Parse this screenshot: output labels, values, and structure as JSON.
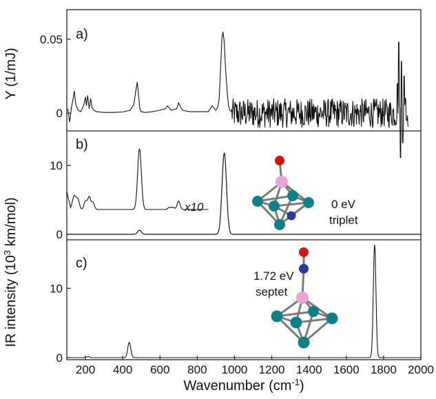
{
  "chart_data": [
    {
      "type": "line",
      "panel_label": "a)",
      "ylabel": "Y (1/mJ)",
      "xlim": [
        100,
        2000
      ],
      "ylim": [
        -0.012,
        0.07
      ],
      "yticks": [
        0,
        0.05
      ],
      "ytick_labels": [
        "0",
        "0.05"
      ],
      "series": [
        {
          "style": "noisy-black",
          "x": [
            105,
            115,
            125,
            133,
            140,
            148,
            160,
            175,
            190,
            200,
            205,
            212,
            220,
            228,
            235,
            245,
            260,
            300,
            350,
            400,
            440,
            460,
            470,
            478,
            485,
            492,
            500,
            520,
            560,
            600,
            630,
            640,
            660,
            690,
            700,
            712,
            720,
            760,
            800,
            860,
            880,
            900,
            910,
            918,
            925,
            932,
            938,
            945,
            952,
            960,
            968,
            975,
            985
          ],
          "y": [
            0.003,
            -0.006,
            0.004,
            0.009,
            0.015,
            0.006,
            0.002,
            0.001,
            0.005,
            0.011,
            0.005,
            0.012,
            0.003,
            0.01,
            0.004,
            0.002,
            0.001,
            0.0005,
            0.0005,
            0.0008,
            0.002,
            0.006,
            0.015,
            0.021,
            0.012,
            0.003,
            0.001,
            0.0005,
            0.001,
            0.002,
            0.003,
            0.005,
            0.002,
            0.003,
            0.007,
            0.004,
            0.002,
            0.001,
            0.001,
            0.001,
            0.005,
            0.002,
            0.004,
            0.01,
            0.03,
            0.05,
            0.055,
            0.048,
            0.03,
            0.015,
            0.005,
            0.002,
            0.001
          ]
        }
      ],
      "noisy_region": {
        "x_start": 985,
        "x_end": 1935,
        "noise_amplitude": 0.01
      },
      "spikes": {
        "x": [
          1875,
          1882,
          1890,
          1895,
          1902,
          1910,
          1918,
          1925
        ],
        "y": [
          0.02,
          0.048,
          -0.03,
          0.035,
          -0.02,
          0.025,
          0.01,
          -0.005
        ]
      }
    },
    {
      "type": "line",
      "panel_label": "b)",
      "xlim": [
        100,
        2000
      ],
      "ylim": [
        -0.8,
        15
      ],
      "yticks": [
        0,
        10
      ],
      "ytick_labels": [
        "0",
        "10"
      ],
      "peaks": {
        "centers": [
          490,
          945
        ],
        "heights": [
          0.6,
          11.8
        ],
        "widths": [
          10,
          12
        ]
      },
      "scaled_trace": {
        "label": "x10",
        "baseline": 3.6,
        "x_end": 860,
        "peaks": {
          "centers": [
            140,
            160,
            200,
            220,
            240,
            490,
            650,
            670,
            700
          ],
          "heights": [
            2.0,
            1.3,
            1.2,
            1.8,
            1.0,
            8.8,
            0.3,
            0.3,
            1.2
          ],
          "widths": [
            10,
            8,
            8,
            8,
            8,
            10,
            8,
            8,
            8
          ]
        },
        "left_edge": {
          "x": [
            100,
            110,
            118
          ],
          "y": [
            6.2,
            5.0,
            4.2
          ]
        }
      },
      "annotations": [
        "0 eV",
        "triplet"
      ],
      "structure": "Co4NO cluster (triplet)"
    },
    {
      "type": "line",
      "panel_label": "c)",
      "xlim": [
        100,
        2000
      ],
      "ylim": [
        -0.3,
        17
      ],
      "yticks": [
        0,
        10
      ],
      "ytick_labels": [
        "0",
        "10"
      ],
      "peaks": {
        "centers": [
          215,
          435,
          1752
        ],
        "heights": [
          0.15,
          2.2,
          16.3
        ],
        "widths": [
          8,
          8,
          7
        ]
      },
      "annotations": [
        "1.72 eV",
        "septet"
      ],
      "structure": "Co4NO cluster (septet)"
    }
  ],
  "x_axis": {
    "label": "Wavenumber (cm",
    "label_sup": "-1",
    "label_end": ")",
    "ticks": [
      200,
      400,
      600,
      800,
      1000,
      1200,
      1400,
      1600,
      1800,
      2000
    ],
    "tick_labels": [
      "200",
      "400",
      "600",
      "800",
      "1000",
      "1200",
      "1400",
      "1600",
      "1800",
      "2000"
    ]
  },
  "shared_ylabel": {
    "pre": "IR intensity (10",
    "sup": "3",
    "post": " km/mol)"
  },
  "colors": {
    "line": "#111111",
    "axis": "#222222",
    "atom_co": "#0f7f8a",
    "atom_n": "#2a3a9a",
    "atom_o": "#d11414",
    "atom_center": "#e6a6d6",
    "bond": "#7a7a7a"
  }
}
